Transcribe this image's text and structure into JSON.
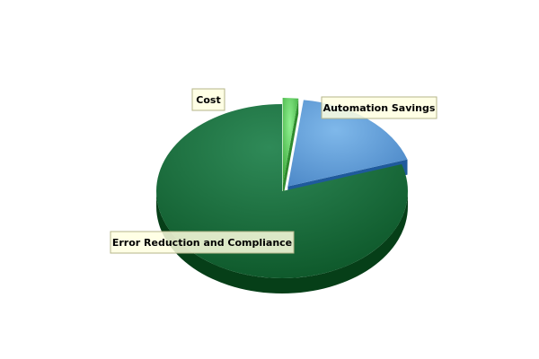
{
  "chart_data": {
    "type": "pie",
    "style": "3d-exploded",
    "title": "",
    "legend": "none",
    "slices": [
      {
        "label": "Cost",
        "value": 2,
        "color": "#5fd35f",
        "exploded": true
      },
      {
        "label": "Automation Savings",
        "value": 18,
        "color": "#6aa6dc",
        "exploded": true
      },
      {
        "label": "Error Reduction and Compliance",
        "value": 80,
        "color": "#1d7a44",
        "exploded": false
      }
    ],
    "label_box_color": "#ffffe1"
  }
}
